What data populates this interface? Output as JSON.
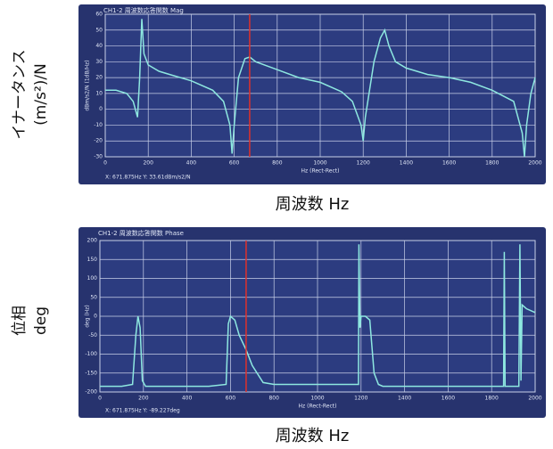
{
  "chart_data": [
    {
      "type": "line",
      "title": "CH1-2 周波数応答関数 Mag",
      "ylabel": "dBm/s2/N (1dB/Hz)",
      "xlabel": "Hz (Rect-Rect)",
      "readout": "X: 671.875Hz Y: 33.61dBm/s2/N",
      "outer_ylabel": [
        "イナータンス",
        "(m/s²)/N"
      ],
      "outer_xlabel": "周波数 Hz",
      "x": [
        0,
        50,
        100,
        130,
        150,
        160,
        170,
        180,
        200,
        250,
        300,
        400,
        500,
        550,
        580,
        590,
        600,
        620,
        650,
        672,
        700,
        800,
        900,
        1000,
        1100,
        1150,
        1190,
        1200,
        1210,
        1250,
        1280,
        1300,
        1320,
        1350,
        1400,
        1500,
        1600,
        1700,
        1800,
        1900,
        1940,
        1950,
        1960,
        1980,
        2000
      ],
      "values": [
        12,
        12,
        10,
        5,
        -5,
        20,
        57,
        35,
        28,
        24,
        22,
        18,
        12,
        5,
        -10,
        -28,
        -10,
        20,
        32,
        33,
        30,
        25,
        20,
        17,
        11,
        5,
        -10,
        -20,
        -5,
        30,
        45,
        50,
        40,
        30,
        26,
        22,
        20,
        17,
        12,
        5,
        -15,
        -30,
        -10,
        10,
        20
      ],
      "color": "#8ee8e0",
      "cursor_x": 671.875,
      "cursor_color": "#e0302a",
      "xlim": [
        0,
        2000
      ],
      "xticks": [
        0,
        200,
        400,
        600,
        800,
        1000,
        1200,
        1400,
        1600,
        1800,
        2000
      ],
      "ylim": [
        -30,
        60
      ],
      "yticks": [
        -30,
        -20,
        -10,
        0,
        10,
        20,
        30,
        40,
        50,
        60
      ],
      "grid": true
    },
    {
      "type": "line",
      "title": "CH1-2 周波数応答関数 Phase",
      "ylabel": "deg (Hz)",
      "xlabel": "Hz (Rect-Rect)",
      "readout": "X: 671.875Hz Y: -89.227deg",
      "outer_ylabel": [
        "位相",
        "deg"
      ],
      "outer_xlabel": "周波数 Hz",
      "x": [
        0,
        100,
        150,
        165,
        175,
        185,
        195,
        210,
        300,
        500,
        580,
        590,
        600,
        620,
        640,
        672,
        700,
        750,
        800,
        1000,
        1180,
        1188,
        1190,
        1195,
        1200,
        1220,
        1240,
        1260,
        1280,
        1300,
        1500,
        1800,
        1855,
        1858,
        1862,
        1865,
        1900,
        1925,
        1930,
        1935,
        1940,
        1960,
        2000
      ],
      "values": [
        -185,
        -185,
        -180,
        -50,
        0,
        -30,
        -170,
        -185,
        -185,
        -185,
        -180,
        -20,
        0,
        -10,
        -50,
        -89,
        -130,
        -175,
        -180,
        -180,
        -180,
        -180,
        190,
        -30,
        0,
        0,
        -10,
        -150,
        -180,
        -185,
        -185,
        -185,
        -185,
        170,
        -185,
        -185,
        -185,
        -185,
        190,
        -170,
        30,
        20,
        10
      ],
      "color": "#8ee8e0",
      "cursor_x": 671.875,
      "cursor_color": "#e0302a",
      "xlim": [
        0,
        2000
      ],
      "xticks": [
        0,
        200,
        400,
        600,
        800,
        1000,
        1200,
        1400,
        1600,
        1800,
        2000
      ],
      "ylim": [
        -200,
        200
      ],
      "yticks": [
        -200,
        -150,
        -100,
        -50,
        0,
        50,
        100,
        150,
        200
      ],
      "grid": true
    }
  ]
}
